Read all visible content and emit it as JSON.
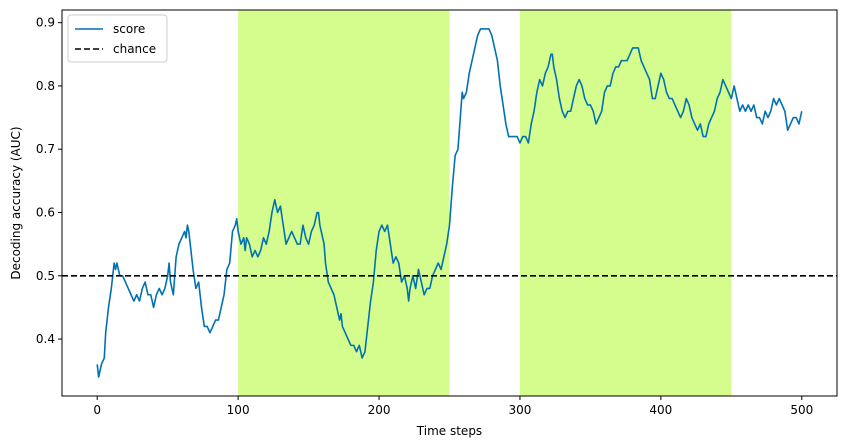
{
  "chart_data": {
    "type": "line",
    "title": "",
    "xlabel": "Time steps",
    "ylabel": "Decoding accuracy (AUC)",
    "xlim": [
      -25,
      525
    ],
    "ylim": [
      0.31,
      0.92
    ],
    "xticks": [
      0,
      100,
      200,
      300,
      400,
      500
    ],
    "yticks": [
      0.4,
      0.5,
      0.6,
      0.7,
      0.8,
      0.9
    ],
    "grid": false,
    "legend_position": "top-left",
    "colors": {
      "score": "#0072b2",
      "chance": "#000000",
      "span": "#d5fd8e"
    },
    "spans": [
      {
        "x0": 100,
        "x1": 250
      },
      {
        "x0": 300,
        "x1": 450
      }
    ],
    "series": [
      {
        "name": "score",
        "style": "solid",
        "points": [
          [
            0,
            0.36
          ],
          [
            1,
            0.34
          ],
          [
            3,
            0.36
          ],
          [
            5,
            0.37
          ],
          [
            6,
            0.41
          ],
          [
            8,
            0.45
          ],
          [
            10,
            0.48
          ],
          [
            12,
            0.52
          ],
          [
            13,
            0.51
          ],
          [
            14,
            0.52
          ],
          [
            16,
            0.5
          ],
          [
            18,
            0.5
          ],
          [
            20,
            0.49
          ],
          [
            22,
            0.48
          ],
          [
            24,
            0.47
          ],
          [
            26,
            0.46
          ],
          [
            28,
            0.47
          ],
          [
            30,
            0.46
          ],
          [
            32,
            0.48
          ],
          [
            34,
            0.49
          ],
          [
            36,
            0.47
          ],
          [
            38,
            0.47
          ],
          [
            40,
            0.45
          ],
          [
            42,
            0.47
          ],
          [
            44,
            0.48
          ],
          [
            46,
            0.47
          ],
          [
            48,
            0.48
          ],
          [
            50,
            0.5
          ],
          [
            51,
            0.52
          ],
          [
            52,
            0.49
          ],
          [
            54,
            0.47
          ],
          [
            56,
            0.53
          ],
          [
            58,
            0.55
          ],
          [
            60,
            0.56
          ],
          [
            62,
            0.57
          ],
          [
            63,
            0.56
          ],
          [
            64,
            0.58
          ],
          [
            65,
            0.57
          ],
          [
            66,
            0.55
          ],
          [
            68,
            0.51
          ],
          [
            70,
            0.48
          ],
          [
            72,
            0.49
          ],
          [
            74,
            0.45
          ],
          [
            76,
            0.42
          ],
          [
            78,
            0.42
          ],
          [
            80,
            0.41
          ],
          [
            82,
            0.42
          ],
          [
            84,
            0.43
          ],
          [
            86,
            0.43
          ],
          [
            88,
            0.45
          ],
          [
            90,
            0.47
          ],
          [
            92,
            0.51
          ],
          [
            94,
            0.52
          ],
          [
            96,
            0.57
          ],
          [
            98,
            0.58
          ],
          [
            99,
            0.59
          ],
          [
            100,
            0.57
          ],
          [
            102,
            0.55
          ],
          [
            104,
            0.56
          ],
          [
            105,
            0.54
          ],
          [
            106,
            0.56
          ],
          [
            108,
            0.55
          ],
          [
            110,
            0.53
          ],
          [
            112,
            0.54
          ],
          [
            114,
            0.53
          ],
          [
            116,
            0.54
          ],
          [
            118,
            0.56
          ],
          [
            120,
            0.55
          ],
          [
            122,
            0.57
          ],
          [
            124,
            0.6
          ],
          [
            125,
            0.61
          ],
          [
            126,
            0.62
          ],
          [
            128,
            0.6
          ],
          [
            130,
            0.61
          ],
          [
            132,
            0.58
          ],
          [
            134,
            0.55
          ],
          [
            136,
            0.56
          ],
          [
            138,
            0.57
          ],
          [
            140,
            0.56
          ],
          [
            142,
            0.55
          ],
          [
            144,
            0.55
          ],
          [
            146,
            0.58
          ],
          [
            148,
            0.56
          ],
          [
            150,
            0.55
          ],
          [
            152,
            0.57
          ],
          [
            154,
            0.58
          ],
          [
            156,
            0.6
          ],
          [
            157,
            0.6
          ],
          [
            158,
            0.58
          ],
          [
            160,
            0.56
          ],
          [
            161,
            0.55
          ],
          [
            162,
            0.52
          ],
          [
            164,
            0.49
          ],
          [
            166,
            0.48
          ],
          [
            168,
            0.47
          ],
          [
            170,
            0.45
          ],
          [
            172,
            0.43
          ],
          [
            173,
            0.44
          ],
          [
            174,
            0.42
          ],
          [
            176,
            0.41
          ],
          [
            178,
            0.4
          ],
          [
            180,
            0.39
          ],
          [
            182,
            0.39
          ],
          [
            184,
            0.38
          ],
          [
            186,
            0.39
          ],
          [
            188,
            0.37
          ],
          [
            190,
            0.38
          ],
          [
            192,
            0.42
          ],
          [
            194,
            0.46
          ],
          [
            196,
            0.49
          ],
          [
            198,
            0.54
          ],
          [
            200,
            0.57
          ],
          [
            202,
            0.58
          ],
          [
            204,
            0.57
          ],
          [
            206,
            0.58
          ],
          [
            208,
            0.55
          ],
          [
            210,
            0.52
          ],
          [
            212,
            0.53
          ],
          [
            214,
            0.52
          ],
          [
            216,
            0.49
          ],
          [
            218,
            0.5
          ],
          [
            220,
            0.48
          ],
          [
            221,
            0.46
          ],
          [
            222,
            0.48
          ],
          [
            224,
            0.5
          ],
          [
            226,
            0.48
          ],
          [
            228,
            0.51
          ],
          [
            230,
            0.49
          ],
          [
            232,
            0.47
          ],
          [
            234,
            0.48
          ],
          [
            236,
            0.48
          ],
          [
            238,
            0.5
          ],
          [
            240,
            0.51
          ],
          [
            242,
            0.52
          ],
          [
            244,
            0.51
          ],
          [
            246,
            0.53
          ],
          [
            248,
            0.55
          ],
          [
            250,
            0.58
          ],
          [
            252,
            0.64
          ],
          [
            254,
            0.69
          ],
          [
            256,
            0.7
          ],
          [
            258,
            0.76
          ],
          [
            259,
            0.79
          ],
          [
            260,
            0.78
          ],
          [
            262,
            0.79
          ],
          [
            264,
            0.82
          ],
          [
            266,
            0.84
          ],
          [
            268,
            0.86
          ],
          [
            270,
            0.88
          ],
          [
            272,
            0.89
          ],
          [
            274,
            0.89
          ],
          [
            276,
            0.89
          ],
          [
            278,
            0.89
          ],
          [
            280,
            0.88
          ],
          [
            282,
            0.86
          ],
          [
            284,
            0.84
          ],
          [
            286,
            0.8
          ],
          [
            288,
            0.77
          ],
          [
            290,
            0.74
          ],
          [
            292,
            0.72
          ],
          [
            294,
            0.72
          ],
          [
            296,
            0.72
          ],
          [
            298,
            0.72
          ],
          [
            300,
            0.71
          ],
          [
            302,
            0.72
          ],
          [
            304,
            0.72
          ],
          [
            306,
            0.71
          ],
          [
            308,
            0.74
          ],
          [
            310,
            0.76
          ],
          [
            312,
            0.79
          ],
          [
            314,
            0.81
          ],
          [
            316,
            0.8
          ],
          [
            318,
            0.82
          ],
          [
            320,
            0.83
          ],
          [
            322,
            0.85
          ],
          [
            323,
            0.85
          ],
          [
            324,
            0.83
          ],
          [
            326,
            0.81
          ],
          [
            328,
            0.78
          ],
          [
            330,
            0.76
          ],
          [
            332,
            0.75
          ],
          [
            334,
            0.76
          ],
          [
            336,
            0.76
          ],
          [
            338,
            0.78
          ],
          [
            340,
            0.8
          ],
          [
            342,
            0.81
          ],
          [
            344,
            0.8
          ],
          [
            346,
            0.78
          ],
          [
            348,
            0.77
          ],
          [
            350,
            0.77
          ],
          [
            352,
            0.76
          ],
          [
            354,
            0.74
          ],
          [
            356,
            0.75
          ],
          [
            358,
            0.76
          ],
          [
            360,
            0.79
          ],
          [
            362,
            0.8
          ],
          [
            364,
            0.8
          ],
          [
            366,
            0.82
          ],
          [
            368,
            0.83
          ],
          [
            370,
            0.83
          ],
          [
            372,
            0.84
          ],
          [
            374,
            0.84
          ],
          [
            376,
            0.84
          ],
          [
            378,
            0.85
          ],
          [
            380,
            0.86
          ],
          [
            382,
            0.86
          ],
          [
            384,
            0.86
          ],
          [
            386,
            0.84
          ],
          [
            388,
            0.83
          ],
          [
            390,
            0.82
          ],
          [
            392,
            0.81
          ],
          [
            394,
            0.78
          ],
          [
            396,
            0.78
          ],
          [
            398,
            0.8
          ],
          [
            400,
            0.82
          ],
          [
            402,
            0.81
          ],
          [
            404,
            0.79
          ],
          [
            406,
            0.78
          ],
          [
            408,
            0.78
          ],
          [
            410,
            0.77
          ],
          [
            412,
            0.76
          ],
          [
            414,
            0.75
          ],
          [
            416,
            0.76
          ],
          [
            418,
            0.78
          ],
          [
            420,
            0.77
          ],
          [
            422,
            0.75
          ],
          [
            424,
            0.74
          ],
          [
            426,
            0.73
          ],
          [
            428,
            0.74
          ],
          [
            430,
            0.72
          ],
          [
            432,
            0.72
          ],
          [
            434,
            0.74
          ],
          [
            436,
            0.75
          ],
          [
            438,
            0.76
          ],
          [
            440,
            0.78
          ],
          [
            442,
            0.79
          ],
          [
            444,
            0.81
          ],
          [
            446,
            0.8
          ],
          [
            448,
            0.79
          ],
          [
            450,
            0.78
          ],
          [
            452,
            0.8
          ],
          [
            454,
            0.78
          ],
          [
            456,
            0.76
          ],
          [
            458,
            0.77
          ],
          [
            460,
            0.76
          ],
          [
            462,
            0.77
          ],
          [
            464,
            0.76
          ],
          [
            466,
            0.77
          ],
          [
            468,
            0.75
          ],
          [
            470,
            0.75
          ],
          [
            472,
            0.74
          ],
          [
            474,
            0.76
          ],
          [
            476,
            0.75
          ],
          [
            478,
            0.76
          ],
          [
            480,
            0.78
          ],
          [
            482,
            0.77
          ],
          [
            484,
            0.78
          ],
          [
            486,
            0.77
          ],
          [
            488,
            0.76
          ],
          [
            490,
            0.73
          ],
          [
            492,
            0.74
          ],
          [
            494,
            0.75
          ],
          [
            496,
            0.75
          ],
          [
            498,
            0.74
          ],
          [
            500,
            0.76
          ]
        ]
      },
      {
        "name": "chance",
        "style": "dashed",
        "points": [
          [
            -25,
            0.5
          ],
          [
            525,
            0.5
          ]
        ]
      }
    ]
  }
}
